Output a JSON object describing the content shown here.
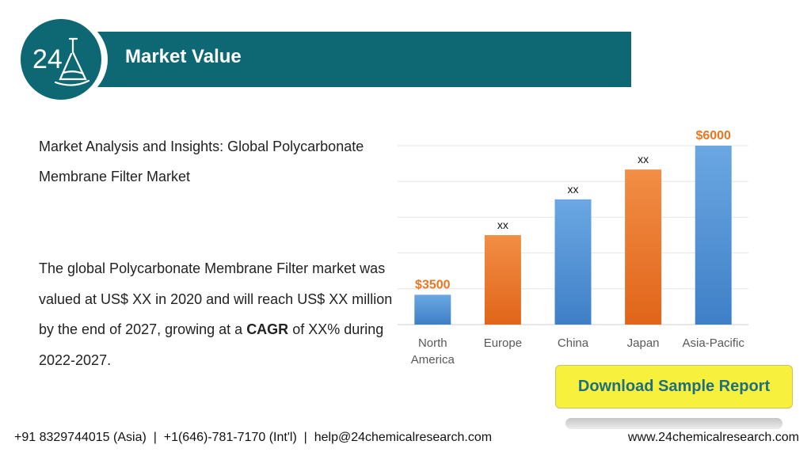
{
  "header": {
    "title": "Market Value",
    "accent_color": "#0d6874",
    "logo": {
      "text": "24",
      "icon": "flask-icon"
    }
  },
  "intro": {
    "line1": "Market Analysis and Insights: Global Polycarbonate",
    "line2": "Membrane Filter Market"
  },
  "body": {
    "text_before": "The global Polycarbonate Membrane Filter market was valued at US$ XX in 2020 and will reach US$ XX million by the end of 2027, growing at a ",
    "bold": "CAGR",
    "text_after": " of XX% during 2022-2027."
  },
  "chart_data": {
    "type": "bar",
    "categories": [
      "North America",
      "Europe",
      "China",
      "Japan",
      "Asia-Pacific"
    ],
    "category_lines": [
      [
        "North",
        "America"
      ],
      [
        "Europe"
      ],
      [
        "China"
      ],
      [
        "Japan"
      ],
      [
        "Asia-Pacific"
      ]
    ],
    "values": [
      3500,
      4500,
      5100,
      5600,
      6000
    ],
    "data_labels": [
      "$3500",
      "xx",
      "xx",
      "xx",
      "$6000"
    ],
    "label_colors": [
      "#e87722",
      "#111111",
      "#111111",
      "#111111",
      "#e87722"
    ],
    "bar_colors": [
      "#4e90d6",
      "#ee7a2a",
      "#4e90d6",
      "#ee7a2a",
      "#4e90d6"
    ],
    "ylim": [
      3000,
      6000
    ],
    "grid": true,
    "xlabel": "",
    "ylabel": ""
  },
  "cta": {
    "label": "Download Sample Report",
    "color": "#f7f03c"
  },
  "footer": {
    "contacts": "+91 8329744015 (Asia)  |  +1(646)-781-7170 (Int'l)  |  help@24chemicalresearch.com",
    "website": "www.24chemicalresearch.com"
  }
}
